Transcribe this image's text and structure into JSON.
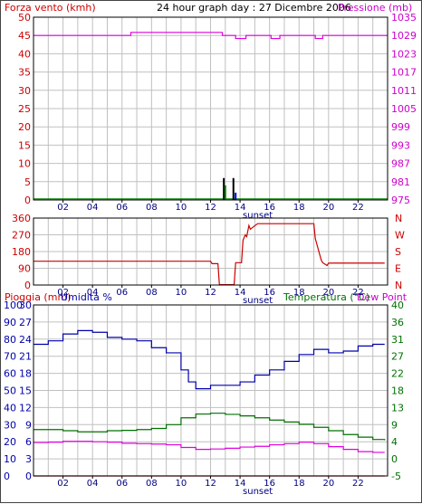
{
  "header": {
    "left": "Forza vento (kmh)",
    "title": "24 hour graph day : 27 Dicembre 2006",
    "right": "Pressione (mb)"
  },
  "colors": {
    "background": "#ffffff",
    "grid": "#c0c0c0",
    "frame": "#000000",
    "pressure": "#e000e0",
    "wind_avg": "#008000",
    "gust": "#000000",
    "wind_extra": "#0000ff",
    "direction": "#cc0000",
    "humidity": "#0000aa",
    "temperature": "#007000",
    "dewpoint": "#e000e0",
    "rain": "#cc0000",
    "label_red": "#cc0000",
    "label_magenta": "#cc00cc",
    "label_blue": "#0000aa",
    "label_green": "#007000"
  },
  "chart_data": [
    {
      "type": "line",
      "name_left_axis": "Forza vento (kmh)",
      "name_right_axis": "Pressione (mb)",
      "x_ticks": [
        "02",
        "04",
        "06",
        "08",
        "10",
        "12",
        "14",
        "16",
        "18",
        "20",
        "22"
      ],
      "annotation": "sunset",
      "ylim_left": [
        0,
        50
      ],
      "yticks_left": [
        "50",
        "45",
        "40",
        "35",
        "30",
        "25",
        "20",
        "15",
        "10",
        "5",
        "0"
      ],
      "ylim_right": [
        975,
        1035
      ],
      "yticks_right": [
        "1035",
        "1029",
        "1023",
        "1017",
        "1011",
        "1005",
        "999",
        "993",
        "987",
        "981",
        "975"
      ],
      "grid": true,
      "series": [
        {
          "key": "pressure",
          "axis": "right",
          "x": [
            0,
            6.5,
            6.6,
            12.7,
            12.8,
            13.6,
            13.7,
            14.3,
            14.4,
            16.0,
            16.1,
            16.6,
            16.7,
            17.3,
            17.4,
            19.0,
            19.1,
            19.5,
            19.6,
            24.0
          ],
          "y": [
            1029,
            1029,
            1030,
            1030,
            1029,
            1029,
            1028,
            1028,
            1029,
            1029,
            1028,
            1028,
            1029,
            1029,
            1029,
            1029,
            1028,
            1028,
            1029,
            1029
          ]
        },
        {
          "key": "wind_avg",
          "axis": "left",
          "x": [
            0,
            24.0
          ],
          "y": [
            0.3,
            0.3
          ]
        }
      ],
      "bars": [
        {
          "key": "gust",
          "x": 12.9,
          "y": 6
        },
        {
          "key": "wind_avg",
          "x": 13.0,
          "y": 4
        },
        {
          "key": "gust",
          "x": 13.55,
          "y": 6
        },
        {
          "key": "wind_extra",
          "x": 13.7,
          "y": 2
        }
      ]
    },
    {
      "type": "line",
      "name_left_axis": "",
      "x_ticks": [
        "02",
        "04",
        "06",
        "08",
        "10",
        "12",
        "14",
        "16",
        "18",
        "20",
        "22"
      ],
      "annotation": "sunset",
      "ylim_left": [
        0,
        360
      ],
      "yticks_left": [
        "360",
        "270",
        "180",
        "90",
        "0"
      ],
      "right_labels": [
        "N",
        "W",
        "S",
        "E",
        "N"
      ],
      "grid": true,
      "series": [
        {
          "key": "direction",
          "x": [
            0,
            12.0,
            12.1,
            12.5,
            12.6,
            13.6,
            13.7,
            14.1,
            14.2,
            14.35,
            14.45,
            14.6,
            14.7,
            15.1,
            15.2,
            19.0,
            19.1,
            19.5,
            19.6,
            19.9,
            20.0,
            23.8
          ],
          "y": [
            128,
            128,
            115,
            115,
            2,
            2,
            120,
            120,
            240,
            270,
            260,
            320,
            300,
            325,
            330,
            330,
            250,
            135,
            120,
            105,
            118,
            118
          ]
        }
      ]
    },
    {
      "type": "line",
      "name_left_axis": "Pioggia (mm)",
      "name_left_axis2": "Umidita %",
      "name_right_axis": "Temperatura (°C)",
      "name_right_axis2": "Dew Point",
      "x_ticks": [
        "02",
        "04",
        "06",
        "08",
        "10",
        "12",
        "14",
        "16",
        "18",
        "20",
        "22"
      ],
      "annotation": "sunset",
      "ylim_humidity": [
        0,
        100
      ],
      "yticks_humidity": [
        "100",
        "90",
        "80",
        "70",
        "60",
        "50",
        "40",
        "30",
        "20",
        "10",
        "0"
      ],
      "ylim_rain": [
        0,
        30
      ],
      "yticks_rain": [
        "30",
        "27",
        "24",
        "21",
        "18",
        "15",
        "12",
        "9",
        "6",
        "3",
        "0"
      ],
      "ylim_temp": [
        -5,
        40
      ],
      "yticks_temp": [
        "40",
        "36",
        "31",
        "27",
        "22",
        "18",
        "13",
        "9",
        "4",
        "0",
        "-5"
      ],
      "grid": true,
      "series": [
        {
          "key": "humidity",
          "x": [
            0,
            1,
            2,
            3,
            4,
            5,
            6,
            7,
            8,
            9,
            10,
            10.5,
            11,
            12,
            13,
            14,
            15,
            16,
            17,
            18,
            19,
            20,
            21,
            22,
            23,
            23.8
          ],
          "y": [
            77,
            79,
            83,
            85,
            84,
            81,
            80,
            79,
            75,
            72,
            62,
            55,
            51,
            53,
            53,
            55,
            59,
            62,
            67,
            71,
            74,
            72,
            73,
            76,
            77,
            77
          ]
        },
        {
          "key": "temperature",
          "x": [
            0,
            1,
            2,
            3,
            4,
            5,
            6,
            7,
            8,
            9,
            10,
            11,
            12,
            13,
            14,
            15,
            16,
            17,
            18,
            19,
            20,
            21,
            22,
            23,
            23.8
          ],
          "y": [
            7.2,
            7.2,
            6.9,
            6.6,
            6.6,
            6.9,
            7.0,
            7.2,
            7.5,
            8.5,
            10.3,
            11.3,
            11.5,
            11.2,
            10.8,
            10.3,
            9.7,
            9.2,
            8.6,
            7.8,
            6.9,
            5.9,
            5.2,
            4.6,
            4.4
          ]
        },
        {
          "key": "dewpoint",
          "x": [
            0,
            1,
            2,
            3,
            4,
            5,
            6,
            7,
            8,
            9,
            10,
            11,
            12,
            13,
            14,
            15,
            16,
            17,
            18,
            19,
            20,
            21,
            22,
            23,
            23.8
          ],
          "y": [
            3.8,
            3.9,
            4.1,
            4.1,
            4.0,
            3.9,
            3.6,
            3.5,
            3.4,
            3.2,
            2.5,
            2.0,
            2.1,
            2.3,
            2.6,
            2.8,
            3.2,
            3.5,
            3.9,
            3.5,
            2.7,
            2.0,
            1.4,
            1.2,
            1.2
          ]
        },
        {
          "key": "rain",
          "x": [
            0,
            23.8
          ],
          "y": [
            0,
            0
          ]
        }
      ]
    }
  ]
}
